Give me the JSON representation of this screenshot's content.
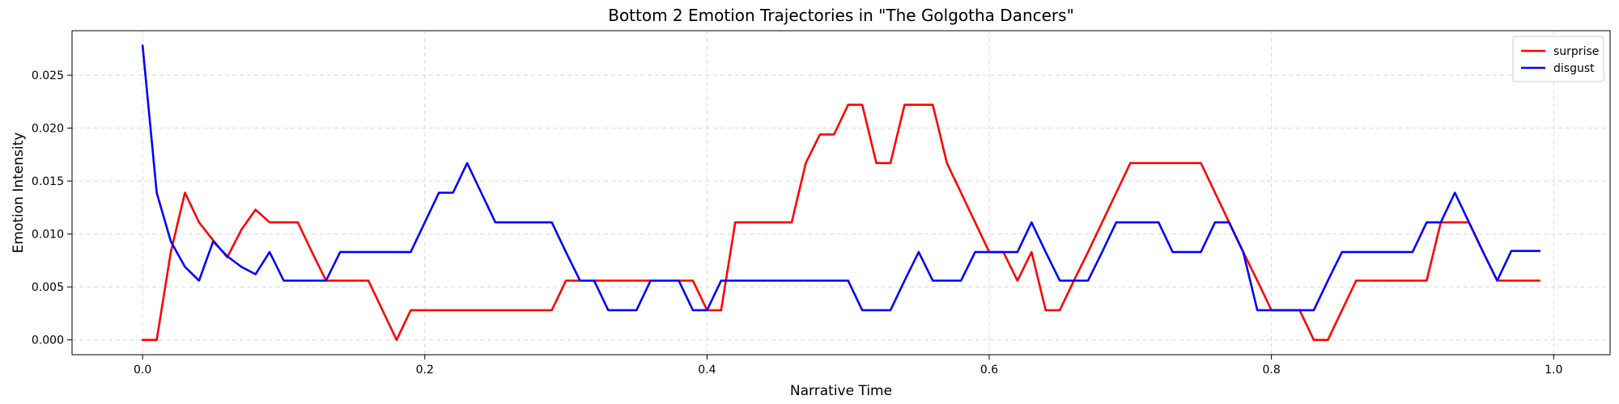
{
  "chart_data": {
    "type": "line",
    "title": "Bottom 2 Emotion Trajectories in \"The Golgotha Dancers\"",
    "xlabel": "Narrative Time",
    "ylabel": "Emotion Intensity",
    "xlim": [
      -0.05,
      1.04
    ],
    "ylim": [
      -0.0014,
      0.0292
    ],
    "xticks": [
      0.0,
      0.2,
      0.4,
      0.6,
      0.8,
      1.0
    ],
    "xtick_labels": [
      "0.0",
      "0.2",
      "0.4",
      "0.6",
      "0.8",
      "1.0"
    ],
    "yticks": [
      0.0,
      0.005,
      0.01,
      0.015,
      0.02,
      0.025
    ],
    "ytick_labels": [
      "0.000",
      "0.005",
      "0.010",
      "0.015",
      "0.020",
      "0.025"
    ],
    "grid": true,
    "legend_position": "top-right",
    "series": [
      {
        "name": "surprise",
        "color": "#ff0000",
        "x": [
          0.0,
          0.01,
          0.02,
          0.03,
          0.04,
          0.05,
          0.06,
          0.07,
          0.08,
          0.09,
          0.1,
          0.11,
          0.12,
          0.13,
          0.14,
          0.15,
          0.16,
          0.17,
          0.18,
          0.19,
          0.2,
          0.21,
          0.22,
          0.23,
          0.24,
          0.25,
          0.26,
          0.27,
          0.28,
          0.29,
          0.3,
          0.31,
          0.32,
          0.33,
          0.34,
          0.35,
          0.36,
          0.37,
          0.38,
          0.39,
          0.4,
          0.41,
          0.42,
          0.43,
          0.44,
          0.45,
          0.46,
          0.47,
          0.48,
          0.49,
          0.5,
          0.51,
          0.52,
          0.53,
          0.54,
          0.55,
          0.56,
          0.57,
          0.58,
          0.59,
          0.6,
          0.61,
          0.62,
          0.63,
          0.64,
          0.65,
          0.66,
          0.67,
          0.68,
          0.69,
          0.7,
          0.71,
          0.72,
          0.73,
          0.74,
          0.75,
          0.76,
          0.77,
          0.78,
          0.79,
          0.8,
          0.81,
          0.82,
          0.83,
          0.84,
          0.85,
          0.86,
          0.87,
          0.88,
          0.89,
          0.9,
          0.91,
          0.92,
          0.93,
          0.94,
          0.95,
          0.96,
          0.97,
          0.98,
          0.99
        ],
        "values": [
          0.0,
          0.0,
          0.0083,
          0.0139,
          0.0111,
          0.0094,
          0.0078,
          0.0104,
          0.0123,
          0.0111,
          0.0111,
          0.0111,
          0.0083,
          0.0056,
          0.0056,
          0.0056,
          0.0056,
          0.0028,
          0.0,
          0.0028,
          0.0028,
          0.0028,
          0.0028,
          0.0028,
          0.0028,
          0.0028,
          0.0028,
          0.0028,
          0.0028,
          0.0028,
          0.0056,
          0.0056,
          0.0056,
          0.0056,
          0.0056,
          0.0056,
          0.0056,
          0.0056,
          0.0056,
          0.0056,
          0.0028,
          0.0028,
          0.0111,
          0.0111,
          0.0111,
          0.0111,
          0.0111,
          0.0167,
          0.0194,
          0.0194,
          0.0222,
          0.0222,
          0.0167,
          0.0167,
          0.0222,
          0.0222,
          0.0222,
          0.0167,
          0.0139,
          0.0111,
          0.0083,
          0.0083,
          0.0056,
          0.0083,
          0.0028,
          0.0028,
          0.0056,
          0.0083,
          0.0111,
          0.0139,
          0.0167,
          0.0167,
          0.0167,
          0.0167,
          0.0167,
          0.0167,
          0.0139,
          0.0111,
          0.0083,
          0.0056,
          0.0028,
          0.0028,
          0.0028,
          0.0,
          0.0,
          0.0028,
          0.0056,
          0.0056,
          0.0056,
          0.0056,
          0.0056,
          0.0056,
          0.0111,
          0.0111,
          0.0111,
          0.0083,
          0.0056,
          0.0056,
          0.0056,
          0.0056
        ]
      },
      {
        "name": "disgust",
        "color": "#0000ff",
        "x": [
          0.0,
          0.01,
          0.02,
          0.03,
          0.04,
          0.05,
          0.06,
          0.07,
          0.08,
          0.09,
          0.1,
          0.11,
          0.12,
          0.13,
          0.14,
          0.15,
          0.16,
          0.17,
          0.18,
          0.19,
          0.2,
          0.21,
          0.22,
          0.23,
          0.24,
          0.25,
          0.26,
          0.27,
          0.28,
          0.29,
          0.3,
          0.31,
          0.32,
          0.33,
          0.34,
          0.35,
          0.36,
          0.37,
          0.38,
          0.39,
          0.4,
          0.41,
          0.42,
          0.43,
          0.44,
          0.45,
          0.46,
          0.47,
          0.48,
          0.49,
          0.5,
          0.51,
          0.52,
          0.53,
          0.54,
          0.55,
          0.56,
          0.57,
          0.58,
          0.59,
          0.6,
          0.61,
          0.62,
          0.63,
          0.64,
          0.65,
          0.66,
          0.67,
          0.68,
          0.69,
          0.7,
          0.71,
          0.72,
          0.73,
          0.74,
          0.75,
          0.76,
          0.77,
          0.78,
          0.79,
          0.8,
          0.81,
          0.82,
          0.83,
          0.84,
          0.85,
          0.86,
          0.87,
          0.88,
          0.89,
          0.9,
          0.91,
          0.92,
          0.93,
          0.94,
          0.95,
          0.96,
          0.97,
          0.98,
          0.99
        ],
        "values": [
          0.0278,
          0.0139,
          0.0093,
          0.0069,
          0.0056,
          0.0093,
          0.0079,
          0.0069,
          0.0062,
          0.0083,
          0.0056,
          0.0056,
          0.0056,
          0.0056,
          0.0083,
          0.0083,
          0.0083,
          0.0083,
          0.0083,
          0.0083,
          0.0111,
          0.0139,
          0.0139,
          0.0167,
          0.0139,
          0.0111,
          0.0111,
          0.0111,
          0.0111,
          0.0111,
          0.0083,
          0.0056,
          0.0056,
          0.0028,
          0.0028,
          0.0028,
          0.0056,
          0.0056,
          0.0056,
          0.0028,
          0.0028,
          0.0056,
          0.0056,
          0.0056,
          0.0056,
          0.0056,
          0.0056,
          0.0056,
          0.0056,
          0.0056,
          0.0056,
          0.0028,
          0.0028,
          0.0028,
          0.0056,
          0.0083,
          0.0056,
          0.0056,
          0.0056,
          0.0083,
          0.0083,
          0.0083,
          0.0083,
          0.0111,
          0.0083,
          0.0056,
          0.0056,
          0.0056,
          0.0083,
          0.0111,
          0.0111,
          0.0111,
          0.0111,
          0.0083,
          0.0083,
          0.0083,
          0.0111,
          0.0111,
          0.0083,
          0.0028,
          0.0028,
          0.0028,
          0.0028,
          0.0028,
          0.0056,
          0.0083,
          0.0083,
          0.0083,
          0.0083,
          0.0083,
          0.0083,
          0.0111,
          0.0111,
          0.0139,
          0.0111,
          0.0083,
          0.0056,
          0.0084,
          0.0084,
          0.0084
        ]
      }
    ]
  }
}
